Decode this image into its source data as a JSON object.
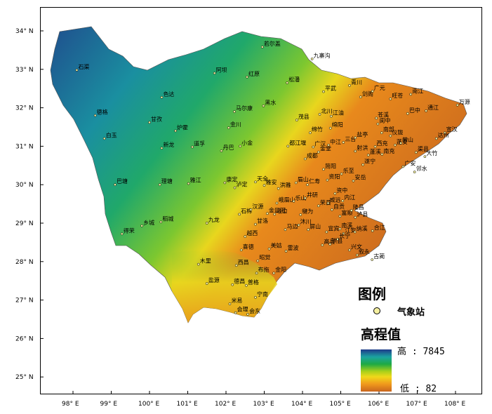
{
  "map": {
    "title": "",
    "elevation": {
      "high": 7845,
      "low": 82
    },
    "latitude_ticks": [
      "34° N",
      "33° N",
      "32° N",
      "31° N",
      "30° N",
      "29° N",
      "28° N",
      "27° N",
      "26° N",
      "25° N"
    ],
    "longitude_ticks": [
      "98° E",
      "99° E",
      "100° E",
      "101° E",
      "102° E",
      "103° E",
      "104° E",
      "105° E",
      "106° E",
      "107° E",
      "108° E"
    ],
    "cities": [
      {
        "name": "若尔盖",
        "lon": 102.95,
        "lat": 33.58
      },
      {
        "name": "九寨沟",
        "lon": 104.25,
        "lat": 33.27
      },
      {
        "name": "石渠",
        "lon": 98.1,
        "lat": 32.98
      },
      {
        "name": "色达",
        "lon": 100.32,
        "lat": 32.27
      },
      {
        "name": "阿坝",
        "lon": 101.7,
        "lat": 32.9
      },
      {
        "name": "红原",
        "lon": 102.55,
        "lat": 32.8
      },
      {
        "name": "松潘",
        "lon": 103.6,
        "lat": 32.65
      },
      {
        "name": "平武",
        "lon": 104.55,
        "lat": 32.42
      },
      {
        "name": "青川",
        "lon": 105.23,
        "lat": 32.58
      },
      {
        "name": "旺苍",
        "lon": 106.3,
        "lat": 32.23
      },
      {
        "name": "南江",
        "lon": 106.83,
        "lat": 32.35
      },
      {
        "name": "万源",
        "lon": 108.05,
        "lat": 32.07
      },
      {
        "name": "德格",
        "lon": 98.58,
        "lat": 31.8
      },
      {
        "name": "甘孜",
        "lon": 100.0,
        "lat": 31.62
      },
      {
        "name": "马尔康",
        "lon": 102.22,
        "lat": 31.9
      },
      {
        "name": "黑水",
        "lon": 102.98,
        "lat": 32.05
      },
      {
        "name": "北川",
        "lon": 104.45,
        "lat": 31.83
      },
      {
        "name": "江油",
        "lon": 104.75,
        "lat": 31.78
      },
      {
        "name": "剑阁",
        "lon": 105.52,
        "lat": 32.28
      },
      {
        "name": "广元",
        "lon": 105.83,
        "lat": 32.43
      },
      {
        "name": "苍溪",
        "lon": 105.93,
        "lat": 31.73
      },
      {
        "name": "巴中",
        "lon": 106.75,
        "lat": 31.85
      },
      {
        "name": "通江",
        "lon": 107.23,
        "lat": 31.92
      },
      {
        "name": "炉霍",
        "lon": 100.68,
        "lat": 31.4
      },
      {
        "name": "金川",
        "lon": 102.07,
        "lat": 31.48
      },
      {
        "name": "茂县",
        "lon": 103.85,
        "lat": 31.68
      },
      {
        "name": "绵竹",
        "lon": 104.2,
        "lat": 31.35
      },
      {
        "name": "绵阳",
        "lon": 104.73,
        "lat": 31.47
      },
      {
        "name": "阆中",
        "lon": 105.97,
        "lat": 31.58
      },
      {
        "name": "仪陇",
        "lon": 106.3,
        "lat": 31.27
      },
      {
        "name": "宣汉",
        "lon": 107.72,
        "lat": 31.35
      },
      {
        "name": "白玉",
        "lon": 98.82,
        "lat": 31.2
      },
      {
        "name": "新龙",
        "lon": 100.32,
        "lat": 30.95
      },
      {
        "name": "道孚",
        "lon": 101.12,
        "lat": 30.98
      },
      {
        "name": "小金",
        "lon": 102.37,
        "lat": 31.0
      },
      {
        "name": "丹巴",
        "lon": 101.88,
        "lat": 30.88
      },
      {
        "name": "都江堰",
        "lon": 103.62,
        "lat": 31.0
      },
      {
        "name": "广汉",
        "lon": 104.28,
        "lat": 30.98
      },
      {
        "name": "中江",
        "lon": 104.68,
        "lat": 31.03
      },
      {
        "name": "三台",
        "lon": 105.07,
        "lat": 31.1
      },
      {
        "name": "盐亭",
        "lon": 105.38,
        "lat": 31.22
      },
      {
        "name": "南部",
        "lon": 106.07,
        "lat": 31.35
      },
      {
        "name": "西充",
        "lon": 105.9,
        "lat": 30.99
      },
      {
        "name": "蓬安",
        "lon": 106.42,
        "lat": 31.03
      },
      {
        "name": "营山",
        "lon": 106.57,
        "lat": 31.08
      },
      {
        "name": "达州",
        "lon": 107.5,
        "lat": 31.2
      },
      {
        "name": "大竹",
        "lon": 107.2,
        "lat": 30.73
      },
      {
        "name": "康定",
        "lon": 101.97,
        "lat": 30.05
      },
      {
        "name": "泸定",
        "lon": 102.23,
        "lat": 29.92
      },
      {
        "name": "雅安",
        "lon": 103.0,
        "lat": 29.98
      },
      {
        "name": "天全",
        "lon": 102.77,
        "lat": 30.07
      },
      {
        "name": "成都",
        "lon": 104.07,
        "lat": 30.67
      },
      {
        "name": "金堂",
        "lon": 104.42,
        "lat": 30.85
      },
      {
        "name": "射洪",
        "lon": 105.38,
        "lat": 30.87
      },
      {
        "name": "蓬溪",
        "lon": 105.72,
        "lat": 30.77
      },
      {
        "name": "南充",
        "lon": 106.08,
        "lat": 30.79
      },
      {
        "name": "渠县",
        "lon": 106.97,
        "lat": 30.84
      },
      {
        "name": "遂宁",
        "lon": 105.58,
        "lat": 30.52
      },
      {
        "name": "广安",
        "lon": 106.63,
        "lat": 30.47
      },
      {
        "name": "邻水",
        "lon": 106.93,
        "lat": 30.33
      },
      {
        "name": "简阳",
        "lon": 104.55,
        "lat": 30.4
      },
      {
        "name": "乐至",
        "lon": 105.02,
        "lat": 30.28
      },
      {
        "name": "安岳",
        "lon": 105.33,
        "lat": 30.1
      },
      {
        "name": "资阳",
        "lon": 104.65,
        "lat": 30.12
      },
      {
        "name": "眉山",
        "lon": 103.83,
        "lat": 30.05
      },
      {
        "name": "仁寿",
        "lon": 104.13,
        "lat": 30.0
      },
      {
        "name": "内江",
        "lon": 105.05,
        "lat": 29.58
      },
      {
        "name": "资中",
        "lon": 104.85,
        "lat": 29.77
      },
      {
        "name": "荣县",
        "lon": 104.42,
        "lat": 29.45
      },
      {
        "name": "威远",
        "lon": 104.67,
        "lat": 29.52
      },
      {
        "name": "洪雅",
        "lon": 103.37,
        "lat": 29.9
      },
      {
        "name": "峨眉山",
        "lon": 103.33,
        "lat": 29.52
      },
      {
        "name": "乐山",
        "lon": 103.77,
        "lat": 29.57
      },
      {
        "name": "井研",
        "lon": 104.07,
        "lat": 29.65
      },
      {
        "name": "九龙",
        "lon": 101.5,
        "lat": 29.0
      },
      {
        "name": "石棉",
        "lon": 102.35,
        "lat": 29.23
      },
      {
        "name": "汉源",
        "lon": 102.65,
        "lat": 29.35
      },
      {
        "name": "金口河",
        "lon": 103.08,
        "lat": 29.25
      },
      {
        "name": "峨边",
        "lon": 103.27,
        "lat": 29.23
      },
      {
        "name": "犍为",
        "lon": 103.95,
        "lat": 29.22
      },
      {
        "name": "宜宾",
        "lon": 104.63,
        "lat": 28.77
      },
      {
        "name": "富顺",
        "lon": 104.98,
        "lat": 29.18
      },
      {
        "name": "泸县",
        "lon": 105.38,
        "lat": 29.15
      },
      {
        "name": "自贡",
        "lon": 104.77,
        "lat": 29.35
      },
      {
        "name": "隆昌",
        "lon": 105.28,
        "lat": 29.33
      },
      {
        "name": "沐川",
        "lon": 103.9,
        "lat": 28.95
      },
      {
        "name": "甘洛",
        "lon": 102.77,
        "lat": 28.97
      },
      {
        "name": "马边",
        "lon": 103.55,
        "lat": 28.83
      },
      {
        "name": "屏山",
        "lon": 104.15,
        "lat": 28.83
      },
      {
        "name": "南溪",
        "lon": 104.98,
        "lat": 28.85
      },
      {
        "name": "江安",
        "lon": 105.07,
        "lat": 28.73
      },
      {
        "name": "纳溪",
        "lon": 105.37,
        "lat": 28.77
      },
      {
        "name": "合江",
        "lon": 105.83,
        "lat": 28.8
      },
      {
        "name": "长宁",
        "lon": 104.92,
        "lat": 28.58
      },
      {
        "name": "高县",
        "lon": 104.52,
        "lat": 28.43
      },
      {
        "name": "珙县",
        "lon": 104.72,
        "lat": 28.45
      },
      {
        "name": "兴文",
        "lon": 105.23,
        "lat": 28.3
      },
      {
        "name": "叙永",
        "lon": 105.43,
        "lat": 28.17
      },
      {
        "name": "古蔺",
        "lon": 105.82,
        "lat": 28.05
      },
      {
        "name": "越西",
        "lon": 102.5,
        "lat": 28.65
      },
      {
        "name": "喜德",
        "lon": 102.4,
        "lat": 28.3
      },
      {
        "name": "美姑",
        "lon": 103.13,
        "lat": 28.33
      },
      {
        "name": "雷波",
        "lon": 103.57,
        "lat": 28.27
      },
      {
        "name": "昭觉",
        "lon": 102.83,
        "lat": 28.02
      },
      {
        "name": "木里",
        "lon": 101.28,
        "lat": 27.93
      },
      {
        "name": "西昌",
        "lon": 102.27,
        "lat": 27.9
      },
      {
        "name": "布拖",
        "lon": 102.8,
        "lat": 27.7
      },
      {
        "name": "金阳",
        "lon": 103.25,
        "lat": 27.7
      },
      {
        "name": "盐源",
        "lon": 101.5,
        "lat": 27.43
      },
      {
        "name": "德昌",
        "lon": 102.17,
        "lat": 27.4
      },
      {
        "name": "普格",
        "lon": 102.53,
        "lat": 27.38
      },
      {
        "name": "宁南",
        "lon": 102.77,
        "lat": 27.07
      },
      {
        "name": "米易",
        "lon": 102.1,
        "lat": 26.9
      },
      {
        "name": "会理",
        "lon": 102.25,
        "lat": 26.67
      },
      {
        "name": "会东",
        "lon": 102.57,
        "lat": 26.63
      },
      {
        "name": "稻城",
        "lon": 100.3,
        "lat": 29.03
      },
      {
        "name": "得荣",
        "lon": 99.28,
        "lat": 28.72
      },
      {
        "name": "巴塘",
        "lon": 99.1,
        "lat": 30.0
      },
      {
        "name": "理塘",
        "lon": 100.27,
        "lat": 30.0
      },
      {
        "name": "雅江",
        "lon": 101.02,
        "lat": 30.03
      },
      {
        "name": "乡城",
        "lon": 99.8,
        "lat": 28.93
      }
    ]
  },
  "legend": {
    "title": "图例",
    "station_label": "气象站",
    "elevation_title": "高程值",
    "high_label": "高 : 7845",
    "low_label": "低 : 82",
    "station_color": "#f5f0a0"
  }
}
